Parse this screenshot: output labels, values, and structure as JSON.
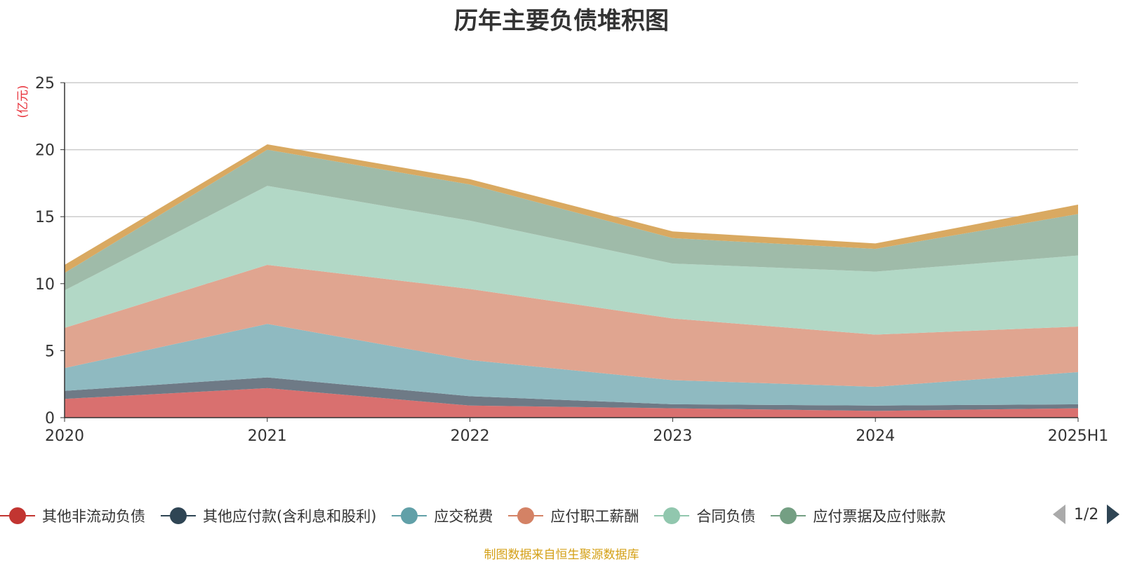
{
  "title": "历年主要负债堆积图",
  "source": "制图数据来自恒生聚源数据库",
  "pager": {
    "text": "1/2"
  },
  "chart_data": {
    "type": "area",
    "stacked": true,
    "unit_label": "(亿元)",
    "categories": [
      "2020",
      "2021",
      "2022",
      "2023",
      "2024",
      "2025H1"
    ],
    "y_ticks": [
      "0",
      "5",
      "10",
      "15",
      "20",
      "25"
    ],
    "ylim": [
      0,
      25
    ],
    "grid": true,
    "legend_position": "bottom",
    "series": [
      {
        "name": "其他非流动负债",
        "values": [
          1.4,
          2.2,
          0.9,
          0.7,
          0.5,
          0.7
        ],
        "fill": "#d9706f",
        "legend_color": "#c23531",
        "in_legend": true
      },
      {
        "name": "其他应付款(含利息和股利)",
        "values": [
          0.6,
          0.8,
          0.7,
          0.3,
          0.4,
          0.3
        ],
        "fill": "#6e7a86",
        "legend_color": "#2f4554",
        "in_legend": true
      },
      {
        "name": "应交税费",
        "values": [
          1.7,
          4.0,
          2.7,
          1.8,
          1.4,
          2.4
        ],
        "fill": "#8fbac1",
        "legend_color": "#61a0a8",
        "in_legend": true
      },
      {
        "name": "应付职工薪酬",
        "values": [
          3.0,
          4.4,
          5.3,
          4.6,
          3.9,
          3.4
        ],
        "fill": "#e0a590",
        "legend_color": "#d48265",
        "in_legend": true
      },
      {
        "name": "合同负债",
        "values": [
          2.8,
          5.9,
          5.1,
          4.1,
          4.7,
          5.3
        ],
        "fill": "#b2d8c6",
        "legend_color": "#91c7ae",
        "in_legend": true
      },
      {
        "name": "应付票据及应付账款",
        "values": [
          1.3,
          2.7,
          2.7,
          1.9,
          1.7,
          3.1
        ],
        "fill": "#9fbba9",
        "legend_color": "#749f83",
        "in_legend": true
      },
      {
        "name": "",
        "values": [
          0.6,
          0.4,
          0.4,
          0.5,
          0.4,
          0.7
        ],
        "fill": "#d9a961",
        "legend_color": "#ca8622",
        "in_legend": false
      }
    ]
  }
}
